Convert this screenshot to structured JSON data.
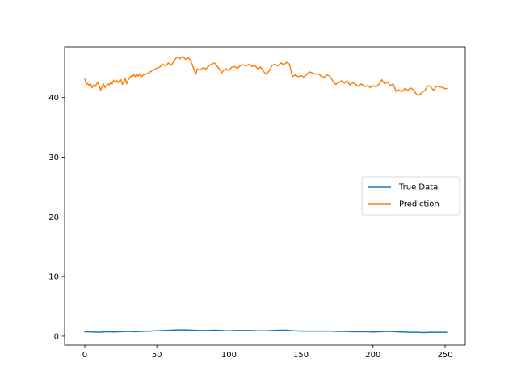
{
  "chart_data": {
    "type": "line",
    "title": "",
    "xlabel": "",
    "ylabel": "",
    "xlim": [
      -14,
      264
    ],
    "ylim": [
      -1.5,
      48.5
    ],
    "xticks": [
      0,
      50,
      100,
      150,
      200,
      250
    ],
    "yticks": [
      0,
      10,
      20,
      30,
      40
    ],
    "legend": {
      "position": "center-right",
      "entries": [
        "True Data",
        "Prediction"
      ]
    },
    "grid": false,
    "series": [
      {
        "name": "True Data",
        "color": "#1f77b4",
        "points": [
          [
            0,
            0.75
          ],
          [
            5,
            0.7
          ],
          [
            10,
            0.65
          ],
          [
            15,
            0.75
          ],
          [
            20,
            0.7
          ],
          [
            25,
            0.75
          ],
          [
            30,
            0.8
          ],
          [
            35,
            0.75
          ],
          [
            40,
            0.8
          ],
          [
            45,
            0.85
          ],
          [
            50,
            0.9
          ],
          [
            55,
            0.95
          ],
          [
            60,
            1.0
          ],
          [
            65,
            1.05
          ],
          [
            70,
            1.05
          ],
          [
            75,
            1.0
          ],
          [
            80,
            0.95
          ],
          [
            85,
            0.95
          ],
          [
            90,
            1.0
          ],
          [
            95,
            0.95
          ],
          [
            100,
            0.9
          ],
          [
            105,
            0.95
          ],
          [
            110,
            0.95
          ],
          [
            115,
            0.95
          ],
          [
            120,
            0.9
          ],
          [
            125,
            0.9
          ],
          [
            130,
            0.95
          ],
          [
            135,
            1.0
          ],
          [
            140,
            1.0
          ],
          [
            145,
            0.9
          ],
          [
            150,
            0.85
          ],
          [
            155,
            0.85
          ],
          [
            160,
            0.85
          ],
          [
            165,
            0.85
          ],
          [
            170,
            0.85
          ],
          [
            175,
            0.8
          ],
          [
            180,
            0.8
          ],
          [
            185,
            0.75
          ],
          [
            190,
            0.75
          ],
          [
            195,
            0.75
          ],
          [
            200,
            0.7
          ],
          [
            205,
            0.75
          ],
          [
            210,
            0.8
          ],
          [
            215,
            0.75
          ],
          [
            220,
            0.7
          ],
          [
            225,
            0.65
          ],
          [
            230,
            0.65
          ],
          [
            235,
            0.6
          ],
          [
            240,
            0.65
          ],
          [
            245,
            0.65
          ],
          [
            251,
            0.65
          ]
        ]
      },
      {
        "name": "Prediction",
        "color": "#ff7f0e",
        "points": [
          [
            0,
            43.2
          ],
          [
            1,
            42.2
          ],
          [
            2,
            42.4
          ],
          [
            3,
            42.0
          ],
          [
            4,
            42.3
          ],
          [
            5,
            41.7
          ],
          [
            6,
            42.1
          ],
          [
            7,
            41.8
          ],
          [
            8,
            42.2
          ],
          [
            9,
            42.6
          ],
          [
            10,
            42.0
          ],
          [
            11,
            41.2
          ],
          [
            12,
            41.9
          ],
          [
            13,
            42.3
          ],
          [
            14,
            41.7
          ],
          [
            15,
            42.0
          ],
          [
            16,
            42.3
          ],
          [
            17,
            42.1
          ],
          [
            18,
            42.6
          ],
          [
            19,
            42.3
          ],
          [
            20,
            42.9
          ],
          [
            21,
            42.6
          ],
          [
            22,
            42.9
          ],
          [
            23,
            42.5
          ],
          [
            24,
            42.8
          ],
          [
            25,
            43.0
          ],
          [
            26,
            42.2
          ],
          [
            27,
            42.6
          ],
          [
            28,
            43.2
          ],
          [
            29,
            42.3
          ],
          [
            30,
            42.9
          ],
          [
            31,
            43.3
          ],
          [
            32,
            43.6
          ],
          [
            33,
            43.5
          ],
          [
            34,
            43.9
          ],
          [
            35,
            43.5
          ],
          [
            36,
            43.9
          ],
          [
            37,
            43.6
          ],
          [
            38,
            44.0
          ],
          [
            39,
            43.4
          ],
          [
            40,
            43.7
          ],
          [
            42,
            43.9
          ],
          [
            44,
            44.1
          ],
          [
            46,
            44.4
          ],
          [
            48,
            44.7
          ],
          [
            50,
            44.9
          ],
          [
            52,
            45.1
          ],
          [
            54,
            45.6
          ],
          [
            56,
            45.3
          ],
          [
            58,
            45.8
          ],
          [
            60,
            45.4
          ],
          [
            62,
            46.2
          ],
          [
            64,
            46.8
          ],
          [
            66,
            46.5
          ],
          [
            68,
            46.9
          ],
          [
            70,
            46.4
          ],
          [
            72,
            46.7
          ],
          [
            74,
            45.9
          ],
          [
            76,
            44.6
          ],
          [
            77,
            43.9
          ],
          [
            78,
            44.8
          ],
          [
            80,
            44.6
          ],
          [
            82,
            45.0
          ],
          [
            84,
            44.8
          ],
          [
            86,
            45.3
          ],
          [
            88,
            45.6
          ],
          [
            90,
            45.8
          ],
          [
            92,
            45.2
          ],
          [
            94,
            44.6
          ],
          [
            95,
            44.1
          ],
          [
            96,
            44.5
          ],
          [
            98,
            44.8
          ],
          [
            100,
            44.5
          ],
          [
            102,
            45.1
          ],
          [
            104,
            45.2
          ],
          [
            106,
            44.9
          ],
          [
            108,
            45.4
          ],
          [
            110,
            45.5
          ],
          [
            112,
            45.3
          ],
          [
            114,
            45.6
          ],
          [
            116,
            45.2
          ],
          [
            118,
            45.4
          ],
          [
            120,
            44.8
          ],
          [
            122,
            45.1
          ],
          [
            124,
            44.4
          ],
          [
            126,
            43.9
          ],
          [
            128,
            44.5
          ],
          [
            130,
            45.4
          ],
          [
            132,
            45.6
          ],
          [
            134,
            45.3
          ],
          [
            136,
            45.8
          ],
          [
            138,
            45.5
          ],
          [
            140,
            45.9
          ],
          [
            142,
            45.6
          ],
          [
            144,
            43.5
          ],
          [
            146,
            43.8
          ],
          [
            148,
            43.5
          ],
          [
            150,
            43.7
          ],
          [
            152,
            43.4
          ],
          [
            154,
            43.9
          ],
          [
            156,
            44.3
          ],
          [
            158,
            44.1
          ],
          [
            160,
            43.9
          ],
          [
            162,
            44.0
          ],
          [
            164,
            43.6
          ],
          [
            166,
            43.4
          ],
          [
            168,
            43.8
          ],
          [
            170,
            43.6
          ],
          [
            172,
            42.8
          ],
          [
            174,
            42.2
          ],
          [
            176,
            42.5
          ],
          [
            178,
            42.8
          ],
          [
            180,
            42.4
          ],
          [
            182,
            42.8
          ],
          [
            184,
            42.1
          ],
          [
            186,
            42.5
          ],
          [
            188,
            42.2
          ],
          [
            190,
            41.9
          ],
          [
            192,
            42.3
          ],
          [
            194,
            41.8
          ],
          [
            196,
            42.0
          ],
          [
            198,
            41.7
          ],
          [
            200,
            42.0
          ],
          [
            202,
            41.8
          ],
          [
            204,
            42.2
          ],
          [
            206,
            43.0
          ],
          [
            208,
            42.3
          ],
          [
            210,
            42.6
          ],
          [
            212,
            42.0
          ],
          [
            214,
            42.3
          ],
          [
            216,
            41.0
          ],
          [
            218,
            41.3
          ],
          [
            220,
            41.0
          ],
          [
            222,
            41.5
          ],
          [
            224,
            41.2
          ],
          [
            226,
            41.6
          ],
          [
            228,
            41.3
          ],
          [
            230,
            40.6
          ],
          [
            232,
            40.4
          ],
          [
            234,
            40.9
          ],
          [
            236,
            41.2
          ],
          [
            238,
            42.0
          ],
          [
            240,
            41.8
          ],
          [
            242,
            41.2
          ],
          [
            244,
            41.9
          ],
          [
            246,
            41.8
          ],
          [
            248,
            41.7
          ],
          [
            250,
            41.5
          ],
          [
            251,
            41.5
          ]
        ]
      }
    ]
  }
}
